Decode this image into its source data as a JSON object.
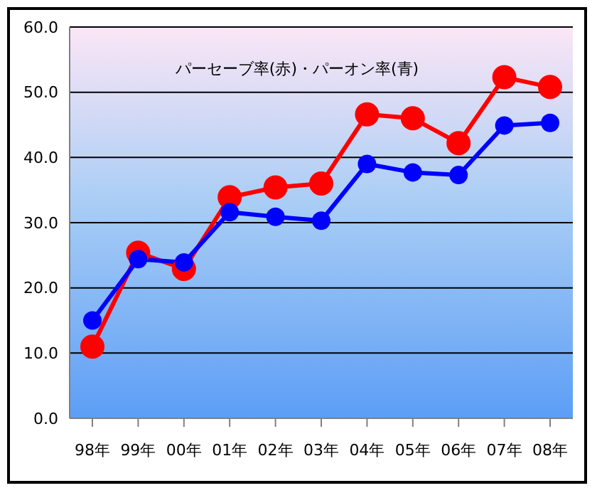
{
  "chart_data": {
    "type": "line",
    "title": "パーセーブ率(赤)・パーオン率(青)",
    "categories": [
      "98年",
      "99年",
      "00年",
      "01年",
      "02年",
      "03年",
      "04年",
      "05年",
      "06年",
      "07年",
      "08年"
    ],
    "series": [
      {
        "color": "#ff0000",
        "values": [
          11.0,
          25.4,
          22.9,
          33.9,
          35.4,
          36.0,
          46.6,
          46.0,
          42.2,
          52.3,
          50.8
        ]
      },
      {
        "color": "#0000ff",
        "values": [
          15.0,
          24.4,
          23.9,
          31.6,
          30.9,
          30.3,
          39.0,
          37.7,
          37.3,
          44.9,
          45.3
        ]
      }
    ],
    "ylim": [
      0,
      60
    ],
    "yticks": [
      {
        "value": 0,
        "label": "0.0"
      },
      {
        "value": 10,
        "label": "10.0"
      },
      {
        "value": 20,
        "label": "20.0"
      },
      {
        "value": 30,
        "label": "30.0"
      },
      {
        "value": 40,
        "label": "40.0"
      },
      {
        "value": 50,
        "label": "50.0"
      },
      {
        "value": 60,
        "label": "60.0"
      }
    ],
    "grid": "y",
    "marker": "circle",
    "line_style": "solid",
    "legend": false
  }
}
